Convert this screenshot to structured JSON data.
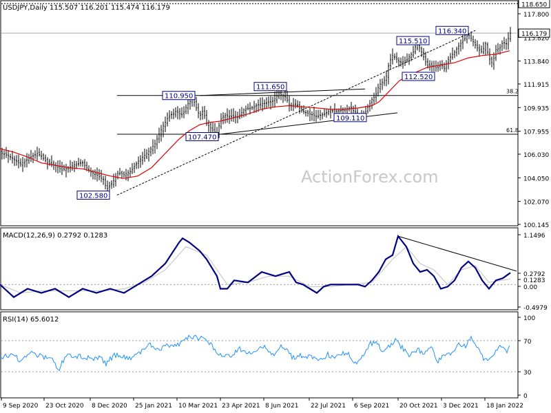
{
  "chart_data": [
    {
      "type": "candlestick",
      "panel": "price",
      "title": "USDJPY,Daily  115.507 116.201 115.474 116.179",
      "x_ticks": [
        "9 Sep 2020",
        "23 Oct 2020",
        "8 Dec 2020",
        "25 Jan 2021",
        "10 Mar 2021",
        "23 Apr 2021",
        "8 Jun 2021",
        "22 Jul 2021",
        "6 Sep 2021",
        "20 Oct 2021",
        "3 Dec 2021",
        "18 Jan 2022"
      ],
      "y_ticks": [
        "117.800",
        "115.820",
        "113.840",
        "111.915",
        "109.935",
        "107.955",
        "106.030",
        "104.050",
        "102.070",
        "100.145"
      ],
      "ylim": [
        100.145,
        117.8
      ],
      "current_price": "116.179",
      "reference_level": "118.650",
      "fib_levels": [
        {
          "label": "38.2",
          "value": 110.95
        },
        {
          "label": "61.8",
          "value": 107.7
        }
      ],
      "price_labels": [
        "102.580",
        "107.470",
        "110.950",
        "111.650",
        "109.110",
        "115.510",
        "112.520",
        "116.340"
      ],
      "series": [
        {
          "name": "price",
          "x": [
            0,
            15,
            30,
            45,
            55,
            70,
            80,
            90,
            100,
            110,
            120,
            130,
            140,
            150,
            155,
            165,
            172,
            180,
            190,
            200,
            215,
            225,
            235,
            245,
            255,
            265,
            272,
            280,
            285,
            290,
            295,
            300,
            305,
            315,
            320,
            325,
            335,
            345,
            355,
            365,
            375,
            385,
            395,
            405,
            415,
            420,
            425,
            430,
            435,
            440,
            450,
            460,
            470,
            480,
            490,
            500,
            510,
            520,
            530,
            540,
            545,
            550,
            560,
            565,
            570,
            575,
            580,
            590,
            600,
            605,
            610,
            620,
            630,
            635,
            640,
            645,
            650,
            660,
            670,
            680,
            690,
            695,
            700,
            705,
            710,
            715,
            720,
            725,
            730,
            735,
            741
          ],
          "y": [
            106.2,
            105.8,
            105.2,
            105.8,
            106.1,
            105.3,
            105.1,
            104.7,
            104.9,
            105.2,
            105.3,
            104.6,
            104.3,
            103.9,
            103.1,
            103.8,
            104.5,
            104.3,
            104.6,
            105.4,
            106.2,
            106.9,
            108.2,
            109.2,
            109.6,
            109.3,
            110.2,
            110.7,
            109.9,
            109.2,
            109.7,
            108.6,
            108.3,
            107.7,
            108.9,
            109.3,
            109.2,
            109.1,
            109.8,
            109.9,
            110.2,
            110.3,
            110.4,
            111.1,
            110.8,
            110.2,
            110.0,
            110.3,
            109.9,
            109.6,
            109.4,
            109.2,
            109.4,
            109.7,
            109.6,
            109.8,
            109.9,
            109.2,
            109.5,
            110.6,
            110.9,
            111.8,
            112.3,
            113.7,
            114.3,
            114.1,
            113.7,
            113.9,
            114.6,
            115.3,
            114.9,
            113.5,
            113.4,
            113.2,
            113.6,
            113.2,
            113.9,
            114.6,
            115.4,
            116.1,
            115.2,
            114.8,
            114.6,
            115.3,
            114.1,
            113.6,
            114.8,
            114.9,
            115.4,
            115.3,
            116.18
          ]
        },
        {
          "name": "moving average",
          "x": [
            0,
            20,
            40,
            60,
            80,
            100,
            120,
            140,
            160,
            170,
            180,
            200,
            220,
            240,
            260,
            275,
            290,
            305,
            320,
            340,
            360,
            380,
            400,
            420,
            440,
            460,
            480,
            500,
            520,
            540,
            550,
            560,
            570,
            580,
            600,
            620,
            640,
            660,
            680,
            700,
            720,
            740
          ],
          "y": [
            106.5,
            106.2,
            105.8,
            105.3,
            105.1,
            104.9,
            104.8,
            104.5,
            104.2,
            104.1,
            104.0,
            104.2,
            104.9,
            106.1,
            107.3,
            108.0,
            108.5,
            108.7,
            108.8,
            109.1,
            109.4,
            109.8,
            110.0,
            110.1,
            110.0,
            109.9,
            109.8,
            109.8,
            109.9,
            110.1,
            110.4,
            111.0,
            111.6,
            112.2,
            112.8,
            113.3,
            113.5,
            113.7,
            114.1,
            114.3,
            114.4,
            114.7
          ]
        }
      ]
    },
    {
      "type": "line",
      "panel": "macd",
      "title": "MACD(12,26,9) 0.2792 0.1283",
      "y_ticks": [
        "1.1496",
        "0.2792",
        "0.1283",
        "0.00",
        "-0.4979"
      ],
      "ylim": [
        -0.55,
        1.25
      ],
      "series": [
        {
          "name": "MACD",
          "x": [
            0,
            20,
            40,
            60,
            80,
            100,
            120,
            140,
            160,
            180,
            200,
            220,
            240,
            260,
            265,
            275,
            290,
            300,
            315,
            320,
            330,
            340,
            360,
            380,
            400,
            410,
            420,
            430,
            440,
            450,
            460,
            470,
            480,
            500,
            520,
            530,
            540,
            550,
            560,
            570,
            578,
            590,
            600,
            610,
            620,
            630,
            640,
            650,
            660,
            670,
            680,
            690,
            700,
            710,
            720,
            730,
            741
          ],
          "y": [
            0.0,
            -0.3,
            -0.1,
            -0.2,
            -0.1,
            -0.3,
            -0.1,
            -0.2,
            -0.1,
            -0.2,
            0.0,
            0.2,
            0.5,
            1.0,
            1.1,
            1.0,
            0.8,
            0.6,
            0.2,
            -0.1,
            -0.1,
            0.1,
            0.05,
            0.3,
            0.2,
            0.25,
            0.3,
            0.05,
            0.0,
            -0.1,
            -0.2,
            -0.05,
            0.0,
            0.0,
            0.0,
            -0.05,
            0.1,
            0.3,
            0.6,
            0.7,
            1.15,
            0.9,
            0.5,
            0.3,
            0.35,
            0.2,
            -0.1,
            -0.05,
            0.1,
            0.4,
            0.55,
            0.4,
            0.1,
            -0.1,
            0.1,
            0.15,
            0.28
          ]
        },
        {
          "name": "Signal",
          "x": [
            0,
            30,
            60,
            90,
            120,
            150,
            180,
            210,
            240,
            270,
            300,
            330,
            360,
            390,
            420,
            450,
            480,
            510,
            540,
            570,
            590,
            610,
            630,
            650,
            670,
            690,
            710,
            741
          ],
          "y": [
            0.0,
            -0.2,
            -0.15,
            -0.15,
            -0.15,
            -0.15,
            -0.1,
            0.05,
            0.35,
            0.9,
            0.7,
            0.0,
            0.05,
            0.2,
            0.2,
            -0.05,
            -0.05,
            0.0,
            0.05,
            0.6,
            0.9,
            0.5,
            0.35,
            0.0,
            0.35,
            0.45,
            0.05,
            0.13
          ]
        },
        {
          "name": "trendline",
          "x": [
            578,
            750
          ],
          "y": [
            1.15,
            0.32
          ]
        }
      ]
    },
    {
      "type": "line",
      "panel": "rsi",
      "title": "RSI(14) 65.6012",
      "y_ticks": [
        "100",
        "70",
        "30",
        "0"
      ],
      "ylim": [
        0,
        100
      ],
      "series": [
        {
          "name": "RSI",
          "x": [
            0,
            15,
            30,
            45,
            60,
            75,
            85,
            90,
            100,
            115,
            130,
            145,
            155,
            165,
            175,
            190,
            205,
            215,
            225,
            235,
            245,
            255,
            265,
            275,
            285,
            295,
            305,
            315,
            325,
            335,
            345,
            355,
            365,
            375,
            385,
            395,
            405,
            415,
            425,
            435,
            445,
            455,
            465,
            475,
            485,
            495,
            505,
            515,
            525,
            535,
            545,
            555,
            565,
            575,
            585,
            595,
            605,
            615,
            625,
            635,
            645,
            655,
            665,
            675,
            685,
            695,
            705,
            715,
            725,
            735,
            741
          ],
          "y": [
            47,
            52,
            45,
            55,
            50,
            48,
            33,
            42,
            52,
            50,
            47,
            48,
            40,
            52,
            50,
            47,
            57,
            66,
            61,
            60,
            64,
            63,
            70,
            77,
            74,
            73,
            66,
            55,
            50,
            48,
            59,
            58,
            50,
            62,
            61,
            50,
            62,
            60,
            47,
            52,
            50,
            47,
            46,
            52,
            50,
            52,
            54,
            42,
            46,
            64,
            70,
            56,
            64,
            70,
            60,
            52,
            59,
            55,
            64,
            44,
            50,
            55,
            65,
            62,
            74,
            57,
            44,
            50,
            63,
            55,
            66
          ]
        }
      ]
    }
  ],
  "watermark": "ActionForex.com"
}
